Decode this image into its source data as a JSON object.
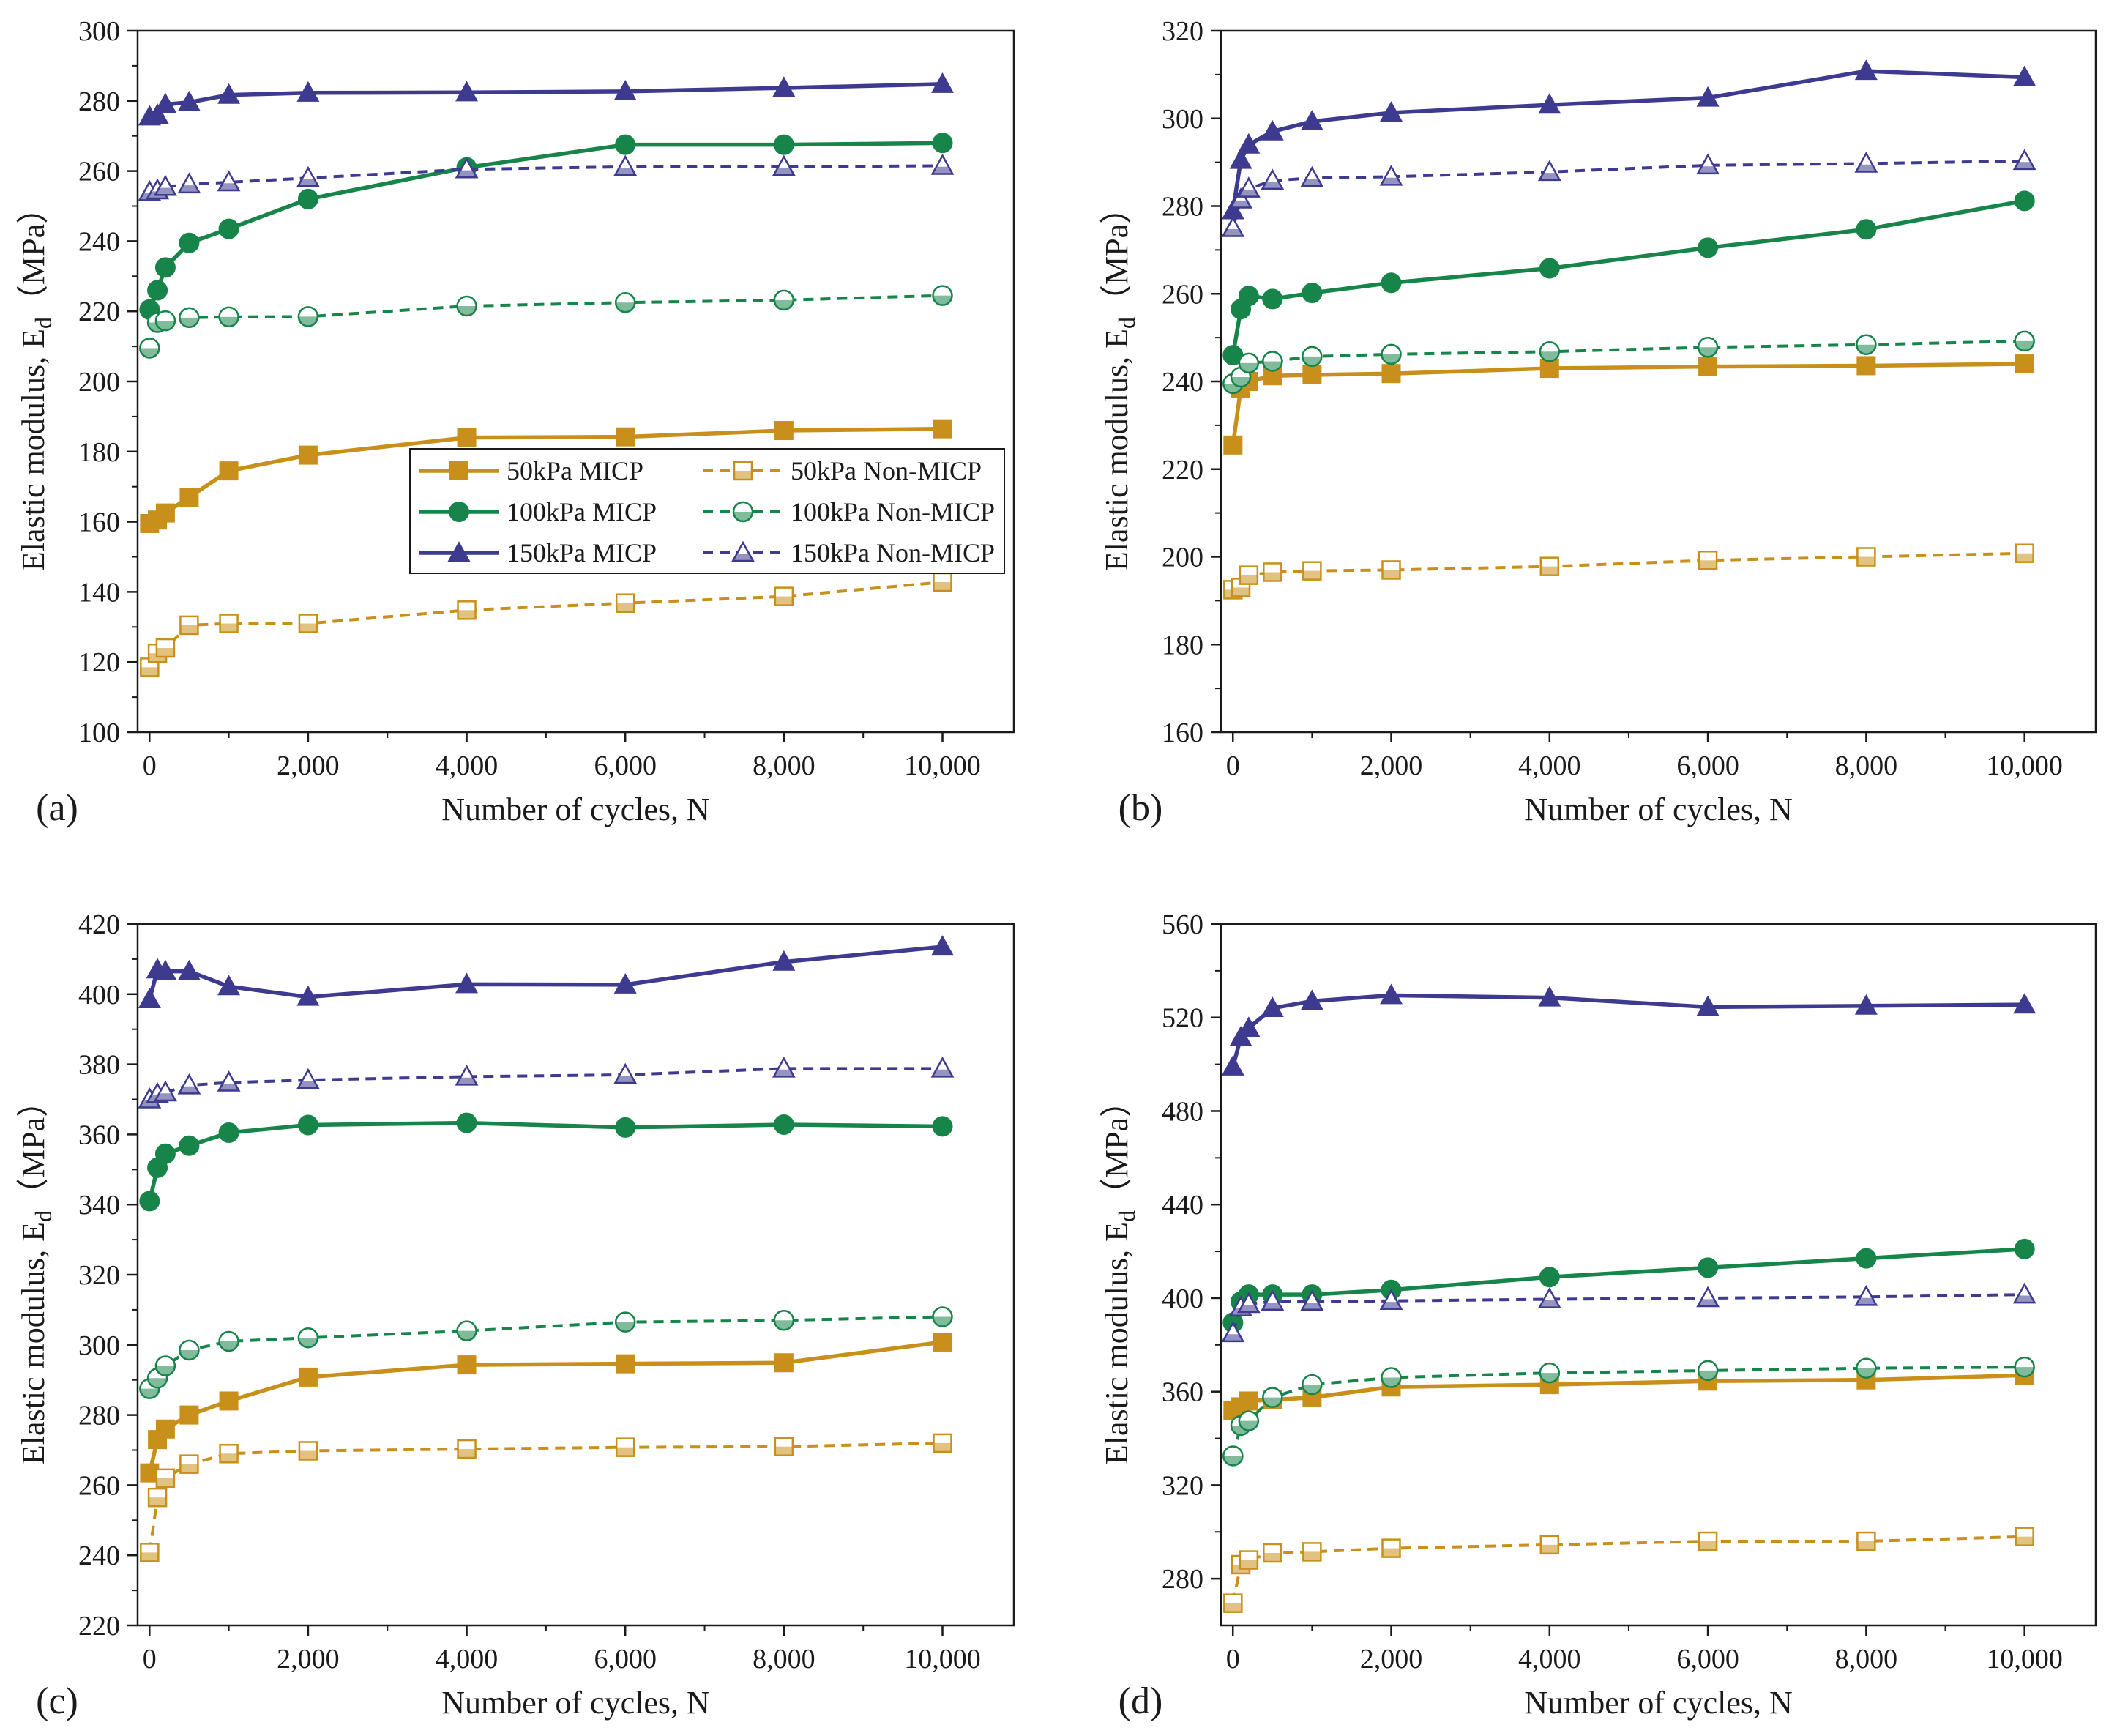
{
  "figure": {
    "colors": {
      "s50": "#c8901a",
      "s100": "#17844a",
      "s150": "#3d3a8f",
      "axis": "#1a1a1a"
    },
    "legend_entries": [
      {
        "label": "50kPa MICP",
        "color": "#c8901a",
        "marker": "square",
        "filled": true,
        "dashed": false
      },
      {
        "label": "50kPa Non-MICP",
        "color": "#c8901a",
        "marker": "square",
        "filled": false,
        "dashed": true
      },
      {
        "label": "100kPa MICP",
        "color": "#17844a",
        "marker": "circle",
        "filled": true,
        "dashed": false
      },
      {
        "label": "100kPa Non-MICP",
        "color": "#17844a",
        "marker": "circle",
        "filled": false,
        "dashed": true
      },
      {
        "label": "150kPa MICP",
        "color": "#3d3a8f",
        "marker": "triangle",
        "filled": true,
        "dashed": false
      },
      {
        "label": "150kPa Non-MICP",
        "color": "#3d3a8f",
        "marker": "triangle",
        "filled": false,
        "dashed": true
      }
    ]
  },
  "chart_data": [
    {
      "type": "line",
      "panel_label": "(a)",
      "xlabel": "Number of cycles, N",
      "ylabel_main": "Elastic modulus, E",
      "ylabel_sub": "d",
      "ylabel_unit": "（MPa）",
      "xlim": [
        -150,
        10900
      ],
      "ylim": [
        100,
        300
      ],
      "xticks": [
        0,
        2000,
        4000,
        6000,
        8000,
        10000
      ],
      "xtick_labels": [
        "0",
        "2,000",
        "4,000",
        "6,000",
        "8,000",
        "10,000"
      ],
      "yticks": [
        100,
        120,
        140,
        160,
        180,
        200,
        220,
        240,
        260,
        280,
        300
      ],
      "ytick_labels": [
        "100",
        "120",
        "140",
        "160",
        "180",
        "200",
        "220",
        "240",
        "260",
        "280",
        "300"
      ],
      "show_legend": true,
      "legend_position": "center-left",
      "x": [
        1,
        100,
        200,
        500,
        1000,
        2000,
        4000,
        6000,
        8000,
        10000
      ],
      "series": [
        {
          "name": "50kPa MICP",
          "color": "#c8901a",
          "marker": "square",
          "filled": true,
          "dashed": false,
          "values": [
            159.5,
            160.5,
            162.5,
            167,
            174.5,
            179,
            184,
            184.2,
            186,
            186.5
          ]
        },
        {
          "name": "50kPa Non-MICP",
          "color": "#c8901a",
          "marker": "square",
          "filled": false,
          "dashed": true,
          "values": [
            118.5,
            122.5,
            124,
            130.5,
            131,
            131,
            134.8,
            136.8,
            138.7,
            142.8
          ]
        },
        {
          "name": "100kPa MICP",
          "color": "#17844a",
          "marker": "circle",
          "filled": true,
          "dashed": false,
          "values": [
            220.5,
            226,
            232.5,
            239.5,
            243.5,
            252,
            261,
            267.5,
            267.5,
            268
          ]
        },
        {
          "name": "100kPa Non-MICP",
          "color": "#17844a",
          "marker": "circle",
          "filled": false,
          "dashed": true,
          "values": [
            209.5,
            216.8,
            217.3,
            218.2,
            218.4,
            218.5,
            221.5,
            222.5,
            223.2,
            224.5
          ]
        },
        {
          "name": "150kPa MICP",
          "color": "#3d3a8f",
          "marker": "triangle",
          "filled": true,
          "dashed": false,
          "values": [
            275.5,
            276,
            279,
            279.6,
            281.7,
            282.3,
            282.4,
            282.7,
            283.7,
            284.8
          ]
        },
        {
          "name": "150kPa Non-MICP",
          "color": "#3d3a8f",
          "marker": "triangle",
          "filled": false,
          "dashed": true,
          "values": [
            254,
            254.5,
            255.5,
            256.2,
            256.8,
            258,
            260.5,
            261.2,
            261.2,
            261.5
          ]
        }
      ]
    },
    {
      "type": "line",
      "panel_label": "(b)",
      "xlabel": "Number of cycles, N",
      "ylabel_main": "Elastic modulus, E",
      "ylabel_sub": "d",
      "ylabel_unit": "（MPa）",
      "xlim": [
        -150,
        10900
      ],
      "ylim": [
        160,
        320
      ],
      "xticks": [
        0,
        2000,
        4000,
        6000,
        8000,
        10000
      ],
      "xtick_labels": [
        "0",
        "2,000",
        "4,000",
        "6,000",
        "8,000",
        "10,000"
      ],
      "yticks": [
        160,
        180,
        200,
        220,
        240,
        260,
        280,
        300,
        320
      ],
      "ytick_labels": [
        "160",
        "180",
        "200",
        "220",
        "240",
        "260",
        "280",
        "300",
        "320"
      ],
      "show_legend": false,
      "x": [
        1,
        100,
        200,
        500,
        1000,
        2000,
        4000,
        6000,
        8000,
        10000
      ],
      "series": [
        {
          "name": "50kPa MICP",
          "color": "#c8901a",
          "marker": "square",
          "filled": true,
          "dashed": false,
          "values": [
            225.5,
            238.5,
            240,
            241.3,
            241.5,
            241.8,
            243,
            243.4,
            243.6,
            244
          ]
        },
        {
          "name": "50kPa Non-MICP",
          "color": "#c8901a",
          "marker": "square",
          "filled": false,
          "dashed": true,
          "values": [
            192.5,
            193,
            195.8,
            196.5,
            196.8,
            197,
            197.8,
            199.2,
            200,
            200.8
          ]
        },
        {
          "name": "100kPa MICP",
          "color": "#17844a",
          "marker": "circle",
          "filled": true,
          "dashed": false,
          "values": [
            246,
            256.5,
            259.5,
            258.8,
            260.2,
            262.5,
            265.8,
            270.5,
            274.7,
            281.2
          ]
        },
        {
          "name": "100kPa Non-MICP",
          "color": "#17844a",
          "marker": "circle",
          "filled": false,
          "dashed": true,
          "values": [
            239.5,
            241,
            244.2,
            244.6,
            245.7,
            246.2,
            246.8,
            247.8,
            248.4,
            249.2
          ]
        },
        {
          "name": "150kPa MICP",
          "color": "#3d3a8f",
          "marker": "triangle",
          "filled": true,
          "dashed": false,
          "values": [
            279,
            290.5,
            294,
            297,
            299.3,
            301.3,
            303.1,
            304.7,
            310.8,
            309.4
          ]
        },
        {
          "name": "150kPa Non-MICP",
          "color": "#3d3a8f",
          "marker": "triangle",
          "filled": false,
          "dashed": true,
          "values": [
            275,
            281.5,
            284,
            285.8,
            286.4,
            286.7,
            287.8,
            289.3,
            289.7,
            290.3
          ]
        }
      ]
    },
    {
      "type": "line",
      "panel_label": "(c)",
      "xlabel": "Number of cycles, N",
      "ylabel_main": "Elastic modulus, E",
      "ylabel_sub": "d",
      "ylabel_unit": "（MPa）",
      "xlim": [
        -150,
        10900
      ],
      "ylim": [
        220,
        420
      ],
      "xticks": [
        0,
        2000,
        4000,
        6000,
        8000,
        10000
      ],
      "xtick_labels": [
        "0",
        "2,000",
        "4,000",
        "6,000",
        "8,000",
        "10,000"
      ],
      "yticks": [
        220,
        240,
        260,
        280,
        300,
        320,
        340,
        360,
        380,
        400,
        420
      ],
      "ytick_labels": [
        "220",
        "240",
        "260",
        "280",
        "300",
        "320",
        "340",
        "360",
        "380",
        "400",
        "420"
      ],
      "show_legend": false,
      "x": [
        1,
        100,
        200,
        500,
        1000,
        2000,
        4000,
        6000,
        8000,
        10000
      ],
      "series": [
        {
          "name": "50kPa MICP",
          "color": "#c8901a",
          "marker": "square",
          "filled": true,
          "dashed": false,
          "values": [
            263.5,
            273,
            276,
            280,
            284,
            290.8,
            294.3,
            294.6,
            294.9,
            300.8
          ]
        },
        {
          "name": "50kPa Non-MICP",
          "color": "#c8901a",
          "marker": "square",
          "filled": false,
          "dashed": true,
          "values": [
            240.8,
            256.5,
            262,
            266,
            269,
            269.8,
            270.3,
            270.8,
            271,
            272
          ]
        },
        {
          "name": "100kPa MICP",
          "color": "#17844a",
          "marker": "circle",
          "filled": true,
          "dashed": false,
          "values": [
            341,
            350.5,
            354.5,
            356.8,
            360.5,
            362.7,
            363.3,
            362,
            362.8,
            362.3
          ]
        },
        {
          "name": "100kPa Non-MICP",
          "color": "#17844a",
          "marker": "circle",
          "filled": false,
          "dashed": true,
          "values": [
            287.5,
            290.5,
            294,
            298.5,
            301,
            302,
            304,
            306.5,
            307,
            308
          ]
        },
        {
          "name": "150kPa MICP",
          "color": "#3d3a8f",
          "marker": "triangle",
          "filled": true,
          "dashed": false,
          "values": [
            398.5,
            407,
            406.5,
            406.5,
            402.2,
            399.2,
            402.8,
            402.7,
            409.2,
            413.5
          ]
        },
        {
          "name": "150kPa Non-MICP",
          "color": "#3d3a8f",
          "marker": "triangle",
          "filled": false,
          "dashed": true,
          "values": [
            370,
            371.5,
            372,
            374,
            374.8,
            375.5,
            376.5,
            377,
            378.8,
            378.8
          ]
        }
      ]
    },
    {
      "type": "line",
      "panel_label": "(d)",
      "xlabel": "Number of cycles, N",
      "ylabel_main": "Elastic modulus, E",
      "ylabel_sub": "d",
      "ylabel_unit": "（MPa）",
      "xlim": [
        -150,
        10900
      ],
      "ylim": [
        260,
        560
      ],
      "xticks": [
        0,
        2000,
        4000,
        6000,
        8000,
        10000
      ],
      "xtick_labels": [
        "0",
        "2,000",
        "4,000",
        "6,000",
        "8,000",
        "10,000"
      ],
      "yticks": [
        280,
        320,
        360,
        400,
        440,
        480,
        520,
        560
      ],
      "ytick_labels": [
        "280",
        "320",
        "360",
        "400",
        "440",
        "480",
        "520",
        "560"
      ],
      "show_legend": false,
      "x": [
        1,
        100,
        200,
        500,
        1000,
        2000,
        4000,
        6000,
        8000,
        10000
      ],
      "series": [
        {
          "name": "50kPa MICP",
          "color": "#c8901a",
          "marker": "square",
          "filled": true,
          "dashed": false,
          "values": [
            352,
            353.5,
            356,
            356.5,
            357.5,
            362,
            363,
            364.5,
            365,
            367
          ]
        },
        {
          "name": "50kPa Non-MICP",
          "color": "#c8901a",
          "marker": "square",
          "filled": false,
          "dashed": true,
          "values": [
            269.5,
            286,
            288,
            291,
            291.5,
            293,
            294.5,
            296,
            296,
            298
          ]
        },
        {
          "name": "100kPa MICP",
          "color": "#17844a",
          "marker": "circle",
          "filled": true,
          "dashed": false,
          "values": [
            389.5,
            398.5,
            401.5,
            401.5,
            401.5,
            403.5,
            409,
            413,
            417,
            421
          ]
        },
        {
          "name": "100kPa Non-MICP",
          "color": "#17844a",
          "marker": "circle",
          "filled": false,
          "dashed": true,
          "values": [
            332.5,
            345.5,
            347.5,
            357.5,
            363,
            366,
            368,
            369,
            370,
            370.5
          ]
        },
        {
          "name": "150kPa MICP",
          "color": "#3d3a8f",
          "marker": "triangle",
          "filled": true,
          "dashed": false,
          "values": [
            499,
            511.5,
            515.5,
            524,
            527,
            529.5,
            528.5,
            524.5,
            525,
            525.5
          ]
        },
        {
          "name": "150kPa Non-MICP",
          "color": "#3d3a8f",
          "marker": "triangle",
          "filled": false,
          "dashed": true,
          "values": [
            385,
            396,
            397.5,
            398.5,
            398.5,
            398.8,
            399.5,
            400,
            400.5,
            401.5
          ]
        }
      ]
    }
  ]
}
